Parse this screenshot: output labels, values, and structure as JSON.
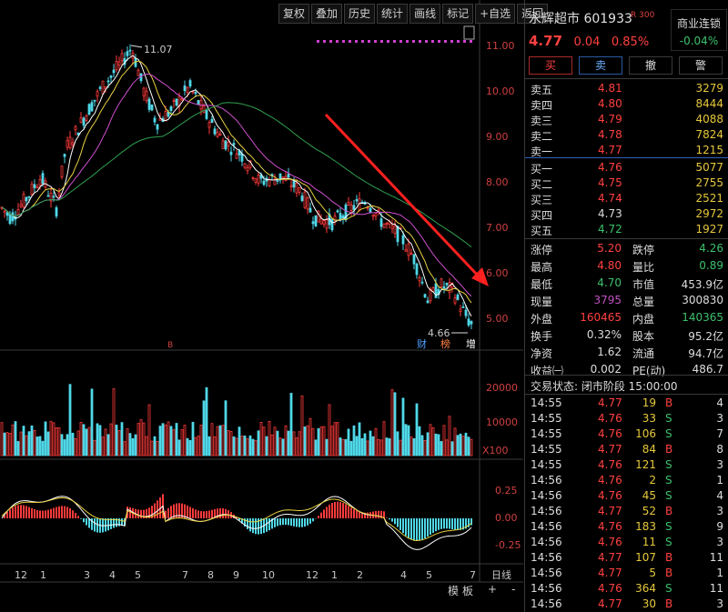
{
  "toolbar": {
    "buttons": [
      "复权",
      "叠加",
      "历史",
      "统计",
      "画线",
      "标记",
      "+自选",
      "返回"
    ]
  },
  "chart": {
    "price_axis": [
      "11.00",
      "10.00",
      "9.00",
      "8.00",
      "7.00",
      "6.00",
      "5.00"
    ],
    "volume_axis": [
      "20000",
      "10000",
      "X100"
    ],
    "macd_axis": [
      "0.25",
      "0.00",
      "-0.25"
    ],
    "month_labels": [
      "12",
      "1",
      "3",
      "4",
      "5",
      "7",
      "8",
      "9",
      "10",
      "12",
      "1",
      "2",
      "4",
      "5",
      "7"
    ],
    "period_label": "日线",
    "high_annotation": "11.07",
    "low_annotation": "4.66",
    "event_markers": [
      "财",
      "榜",
      "增"
    ],
    "small_marker": "B",
    "colors": {
      "up": "#ff3a3a",
      "down": "#4fd8e8",
      "ma5": "#ffffff",
      "ma10": "#e8d040",
      "ma20": "#d050d0",
      "ma60": "#30a050",
      "arrow": "#ff2020"
    }
  },
  "bottom_bar": {
    "items": [
      "模",
      "板",
      "+",
      "-"
    ]
  },
  "quote": {
    "name": "永辉超市 601933",
    "badge": "R 300",
    "concept_name": "商业连锁",
    "concept_pct": "-0.04%",
    "price": "4.77",
    "change": "0.04",
    "change_pct": "0.85%"
  },
  "trade_buttons": [
    "买",
    "卖",
    "撤",
    "警"
  ],
  "order_book": {
    "asks": [
      {
        "label": "卖五",
        "price": "4.81",
        "vol": "3279"
      },
      {
        "label": "卖四",
        "price": "4.80",
        "vol": "8444"
      },
      {
        "label": "卖三",
        "price": "4.79",
        "vol": "4088"
      },
      {
        "label": "卖二",
        "price": "4.78",
        "vol": "7824"
      },
      {
        "label": "卖一",
        "price": "4.77",
        "vol": "1215"
      }
    ],
    "bids": [
      {
        "label": "买一",
        "price": "4.76",
        "vol": "5077"
      },
      {
        "label": "买二",
        "price": "4.75",
        "vol": "2755"
      },
      {
        "label": "买三",
        "price": "4.74",
        "vol": "2521"
      },
      {
        "label": "买四",
        "price": "4.73",
        "vol": "2972"
      },
      {
        "label": "买五",
        "price": "4.72",
        "vol": "1927"
      }
    ]
  },
  "stats": [
    {
      "l1": "涨停",
      "v1": "5.20",
      "c1": "#ff4040",
      "l2": "跌停",
      "v2": "4.26",
      "c2": "#3cc06c"
    },
    {
      "l1": "最高",
      "v1": "4.80",
      "c1": "#ff4040",
      "l2": "量比",
      "v2": "0.89",
      "c2": "#3cc06c"
    },
    {
      "l1": "最低",
      "v1": "4.70",
      "c1": "#3cc06c",
      "l2": "市值",
      "v2": "453.9亿",
      "c2": "#dddddd"
    },
    {
      "l1": "现量",
      "v1": "3795",
      "c1": "#c050c0",
      "l2": "总量",
      "v2": "300830",
      "c2": "#dddddd"
    },
    {
      "l1": "外盘",
      "v1": "160465",
      "c1": "#ff4040",
      "l2": "内盘",
      "v2": "140365",
      "c2": "#3cc06c"
    },
    {
      "l1": "换手",
      "v1": "0.32%",
      "c1": "#dddddd",
      "l2": "股本",
      "v2": "95.2亿",
      "c2": "#dddddd"
    },
    {
      "l1": "净资",
      "v1": "1.62",
      "c1": "#dddddd",
      "l2": "流通",
      "v2": "94.7亿",
      "c2": "#dddddd"
    },
    {
      "l1": "收益㈠",
      "v1": "0.002",
      "c1": "#dddddd",
      "l2": "PE(动)",
      "v2": "486.7",
      "c2": "#dddddd"
    }
  ],
  "trade_status": "交易状态: 闭市阶段 15:00:00",
  "ticks": [
    {
      "time": "14:55",
      "price": "4.77",
      "vol": "19",
      "side": "B",
      "n": "4"
    },
    {
      "time": "14:55",
      "price": "4.76",
      "vol": "33",
      "side": "S",
      "n": "3"
    },
    {
      "time": "14:55",
      "price": "4.76",
      "vol": "106",
      "side": "S",
      "n": "7"
    },
    {
      "time": "14:55",
      "price": "4.77",
      "vol": "84",
      "side": "B",
      "n": "8"
    },
    {
      "time": "14:55",
      "price": "4.76",
      "vol": "121",
      "side": "S",
      "n": "3"
    },
    {
      "time": "14:56",
      "price": "4.76",
      "vol": "2",
      "side": "S",
      "n": "1"
    },
    {
      "time": "14:56",
      "price": "4.76",
      "vol": "45",
      "side": "S",
      "n": "4"
    },
    {
      "time": "14:56",
      "price": "4.77",
      "vol": "52",
      "side": "B",
      "n": "3"
    },
    {
      "time": "14:56",
      "price": "4.76",
      "vol": "183",
      "side": "S",
      "n": "9"
    },
    {
      "time": "14:56",
      "price": "4.76",
      "vol": "11",
      "side": "S",
      "n": "3"
    },
    {
      "time": "14:56",
      "price": "4.77",
      "vol": "107",
      "side": "B",
      "n": "11"
    },
    {
      "time": "14:56",
      "price": "4.77",
      "vol": "5",
      "side": "B",
      "n": "1"
    },
    {
      "time": "14:56",
      "price": "4.76",
      "vol": "364",
      "side": "S",
      "n": "11"
    },
    {
      "time": "14:56",
      "price": "4.77",
      "vol": "30",
      "side": "B",
      "n": "3"
    }
  ]
}
